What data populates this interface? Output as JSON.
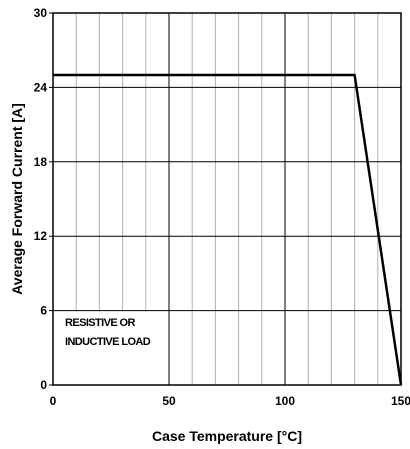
{
  "chart_data": {
    "type": "line",
    "xlabel": "Case Temperature [°C]",
    "ylabel": "Average Forward Current [A]",
    "xlim": [
      0,
      150
    ],
    "ylim": [
      0,
      30
    ],
    "x_ticks": [
      0,
      50,
      100,
      150
    ],
    "y_ticks": [
      0,
      6,
      12,
      18,
      24,
      30
    ],
    "x_minor_step": 10,
    "grid": true,
    "series": [
      {
        "x": [
          0,
          130,
          150
        ],
        "y": [
          25,
          25,
          0
        ]
      }
    ],
    "annotations": [
      "RESISTIVE OR",
      "INDUCTIVE LOAD"
    ]
  }
}
